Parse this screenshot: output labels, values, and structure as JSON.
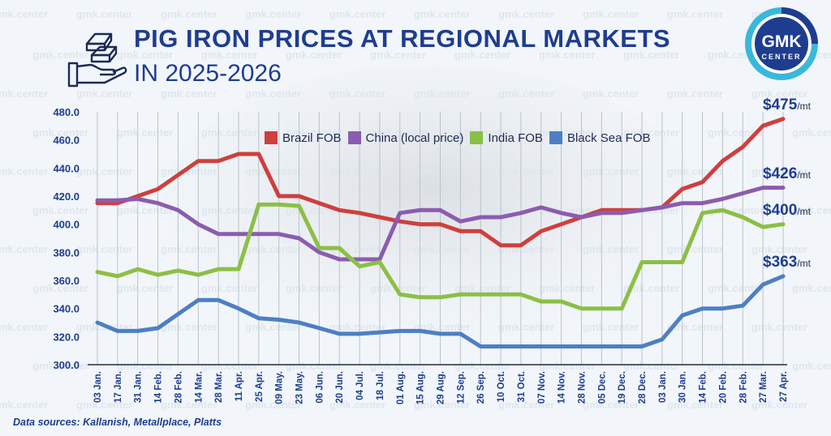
{
  "header": {
    "title_line1": "PIG IRON PRICES AT REGIONAL MARKETS",
    "title_line2": "IN 2025-2026"
  },
  "logo": {
    "line1": "GMK",
    "line2": "CENTER"
  },
  "watermark": "gmk.center",
  "source": "Data sources: Kallanish, Metallplace, Platts",
  "end_labels": [
    {
      "series": "Brazil FOB",
      "amount": "$475",
      "unit": "/mt"
    },
    {
      "series": "China (local price)",
      "amount": "$426",
      "unit": "/mt"
    },
    {
      "series": "India FOB",
      "amount": "$400",
      "unit": "/mt"
    },
    {
      "series": "Black Sea FOB",
      "amount": "$363",
      "unit": "/mt"
    }
  ],
  "colors": {
    "title": "#1f3d8f",
    "axis_text": "#1f3d8f"
  },
  "chart_data": {
    "type": "line",
    "categories": [
      "03 Jan.",
      "17 Jan.",
      "31 Jan.",
      "14 Feb.",
      "28 Feb.",
      "14 Mar.",
      "28 Mar.",
      "11 Apr.",
      "25 Apr.",
      "09 May.",
      "23 May.",
      "06 Jun.",
      "20 Jun.",
      "04 Jul.",
      "18 Jul.",
      "01 Aug.",
      "15 Aug.",
      "29 Aug.",
      "12 Sep.",
      "26 Sep.",
      "10 Oct.",
      "31 Oct.",
      "07 Nov.",
      "14 Nov.",
      "28 Nov.",
      "05 Dec.",
      "19 Dec.",
      "28 Dec.",
      "03 Jan.",
      "30 Jan.",
      "14 Feb.",
      "20 Feb.",
      "28 Feb.",
      "27 Mar.",
      "27 Apr."
    ],
    "ylim": [
      300,
      480
    ],
    "yticks": [
      "300.0",
      "320.0",
      "340.0",
      "360.0",
      "380.0",
      "400.0",
      "420.0",
      "440.0",
      "460.0",
      "480.0"
    ],
    "grid": "vertical",
    "legend": "top",
    "series": [
      {
        "name": "Brazil FOB",
        "color": "#cf3f3d",
        "values": [
          415,
          415,
          420,
          425,
          435,
          445,
          445,
          450,
          450,
          420,
          420,
          415,
          410,
          408,
          405,
          402,
          400,
          400,
          395,
          395,
          385,
          385,
          395,
          400,
          405,
          410,
          410,
          410,
          412,
          425,
          430,
          445,
          455,
          470,
          475
        ]
      },
      {
        "name": "China (local price)",
        "color": "#8b5cb0",
        "values": [
          417,
          417,
          418,
          415,
          410,
          400,
          393,
          393,
          393,
          393,
          390,
          380,
          375,
          375,
          375,
          408,
          410,
          410,
          402,
          405,
          405,
          408,
          412,
          408,
          405,
          408,
          408,
          410,
          412,
          415,
          415,
          418,
          422,
          426,
          426
        ]
      },
      {
        "name": "India FOB",
        "color": "#8cbf45",
        "values": [
          366,
          363,
          368,
          364,
          367,
          364,
          368,
          368,
          414,
          414,
          413,
          383,
          383,
          370,
          373,
          350,
          348,
          348,
          350,
          350,
          350,
          350,
          345,
          345,
          340,
          340,
          340,
          373,
          373,
          373,
          408,
          410,
          405,
          398,
          400
        ]
      },
      {
        "name": "Black Sea FOB",
        "color": "#4d7fc5",
        "values": [
          330,
          324,
          324,
          326,
          336,
          346,
          346,
          340,
          333,
          332,
          330,
          326,
          322,
          322,
          323,
          324,
          324,
          322,
          322,
          313,
          313,
          313,
          313,
          313,
          313,
          313,
          313,
          313,
          318,
          335,
          340,
          340,
          342,
          357,
          363
        ]
      }
    ]
  }
}
